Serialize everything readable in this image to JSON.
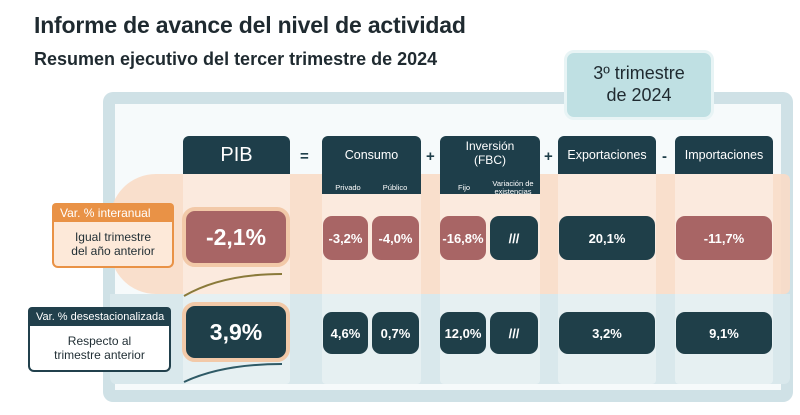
{
  "header": {
    "title": "Informe de avance del nivel de actividad",
    "subtitle": "Resumen ejecutivo del tercer trimestre de 2024",
    "quarter_tag": "3º trimestre\nde 2024"
  },
  "columns": {
    "pib": "PIB",
    "consumo": "Consumo",
    "consumo_privado": "Privado",
    "consumo_publico": "Público",
    "inversion": "Inversión\n(FBC)",
    "inversion_fijo": "Fijo",
    "inversion_variacion": "Variación de existencias",
    "exportaciones": "Exportaciones",
    "importaciones": "Importaciones"
  },
  "operators": {
    "equals": "=",
    "plus1": "+",
    "plus2": "+",
    "minus": "-"
  },
  "rows": {
    "annual": {
      "tag": "Var. % interanual",
      "label": "Igual trimestre\ndel año anterior",
      "pib": "-2,1%",
      "privado": "-3,2%",
      "publico": "-4,0%",
      "fijo": "-16,8%",
      "variacion": "///",
      "exportaciones": "20,1%",
      "importaciones": "-11,7%"
    },
    "quarterly": {
      "tag": "Var. % desestacionalizada",
      "label": "Respecto al\ntrimestre anterior",
      "pib": "3,9%",
      "privado": "4,6%",
      "publico": "0,7%",
      "fijo": "12,0%",
      "variacion": "///",
      "exportaciones": "3,2%",
      "importaciones": "9,1%"
    }
  },
  "colors": {
    "navy": "#1e3e4a",
    "negative": "#a86565",
    "annual_band": "#f9dcc6",
    "quarter_band": "#d9e8ec",
    "orange_tag": "#e99246",
    "quarter_tag_bg": "#bfe0e3"
  }
}
